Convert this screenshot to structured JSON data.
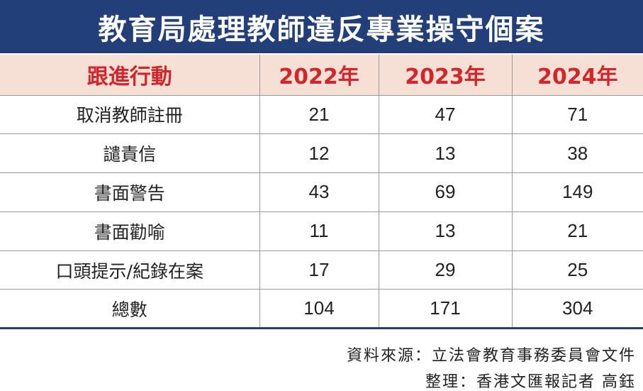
{
  "title": "教育局處理教師違反專業操守個案",
  "table": {
    "headers": [
      "跟進行動",
      "2022年",
      "2023年",
      "2024年"
    ],
    "rows": [
      {
        "action": "取消教師註冊",
        "y2022": "21",
        "y2023": "47",
        "y2024": "71"
      },
      {
        "action": "譴責信",
        "y2022": "12",
        "y2023": "13",
        "y2024": "38"
      },
      {
        "action": "書面警告",
        "y2022": "43",
        "y2023": "69",
        "y2024": "149"
      },
      {
        "action": "書面勸喻",
        "y2022": "11",
        "y2023": "13",
        "y2024": "21"
      },
      {
        "action": "口頭提示/紀錄在案",
        "y2022": "17",
        "y2023": "29",
        "y2024": "25"
      },
      {
        "action": "總數",
        "y2022": "104",
        "y2023": "171",
        "y2024": "304"
      }
    ]
  },
  "footer": {
    "source": "資料來源：立法會教育事務委員會文件",
    "credit": "整理：香港文匯報記者 高鈺"
  },
  "colors": {
    "title_bg": "#233f7a",
    "header_bg": "#f6e0d5",
    "header_text": "#d3252c"
  }
}
